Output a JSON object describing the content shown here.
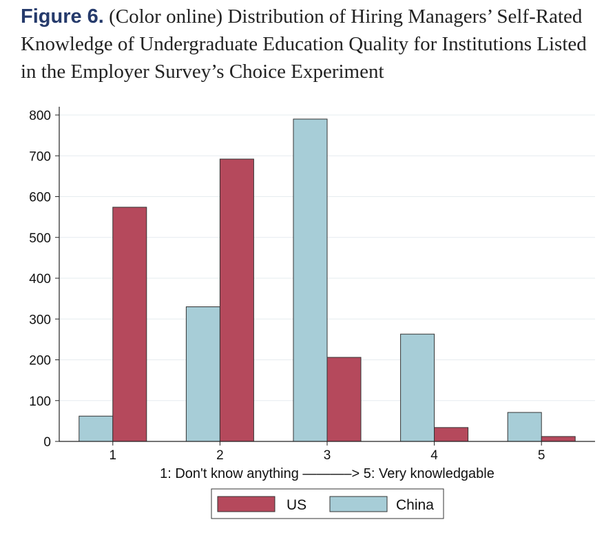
{
  "caption": {
    "label": "Figure 6.",
    "text": "(Color online) Distribution of Hiring Managers’ Self-Rated Knowledge of Undergraduate Education Quality for Institutions Listed in the Employer Survey’s Choice Experiment"
  },
  "chart_data": {
    "type": "bar",
    "categories": [
      "1",
      "2",
      "3",
      "4",
      "5"
    ],
    "series": [
      {
        "name": "China",
        "color": "#a7cdd7",
        "values": [
          62,
          330,
          790,
          263,
          71
        ]
      },
      {
        "name": "US",
        "color": "#b5495c",
        "values": [
          574,
          692,
          206,
          34,
          12
        ]
      }
    ],
    "legend_order": [
      "US",
      "China"
    ],
    "xlabel": "1: Don't know anything ———–> 5: Very knowledgable",
    "ylabel": "",
    "ylim": [
      0,
      800
    ],
    "yticks": [
      0,
      100,
      200,
      300,
      400,
      500,
      600,
      700,
      800
    ],
    "grid": true,
    "legend_position": "bottom"
  }
}
